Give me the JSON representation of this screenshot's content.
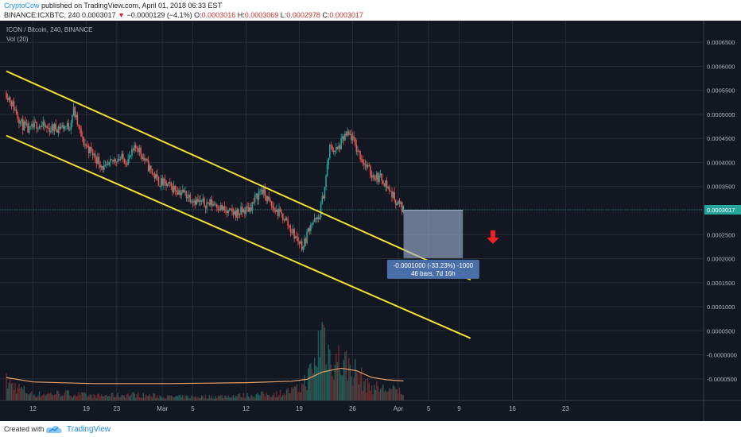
{
  "header": {
    "author": "CryptoCow",
    "published": "published on TradingView.com, April 01, 2018 06:33 EST",
    "symbol_line": "BINANCE:ICXBTC, 240",
    "last_value": "0.0003017",
    "change_arrow": "▼",
    "change_text": "−0.0000129 (−4.1%)",
    "ohlc": [
      {
        "key": "O:",
        "value": "0.0003016"
      },
      {
        "key": "H:",
        "value": "0.0003069"
      },
      {
        "key": "L:",
        "value": "0.0002978"
      },
      {
        "key": "C:",
        "value": "0.0003017"
      }
    ]
  },
  "legend": {
    "title": "ICON / Bitcoin, 240, BINANCE",
    "volume": "Vol (20)"
  },
  "footer": {
    "created_with": "Created with",
    "brand": "TradingView"
  },
  "chart_data": {
    "type": "candlestick",
    "ylim": [
      -9.5e-05,
      0.000695
    ],
    "y_ticks": [
      "0.0006500",
      "0.0006000",
      "0.0005500",
      "0.0005000",
      "0.0004500",
      "0.0004000",
      "0.0003500",
      "0.0003017",
      "0.0002500",
      "0.0002000",
      "0.0001500",
      "0.0001000",
      "0.0000500",
      "-0.0000000",
      "-0.0000500"
    ],
    "y_tick_values": [
      0.00065,
      0.0006,
      0.00055,
      0.0005,
      0.00045,
      0.0004,
      0.00035,
      0.0003017,
      0.00025,
      0.0002,
      0.00015,
      0.0001,
      5e-05,
      0.0,
      -5e-05
    ],
    "x_ticks": [
      {
        "label": "12",
        "day": 12
      },
      {
        "label": "19",
        "day": 19
      },
      {
        "label": "23",
        "day": 23
      },
      {
        "label": "Mar",
        "day": 29
      },
      {
        "label": "5",
        "day": 33
      },
      {
        "label": "12",
        "day": 40
      },
      {
        "label": "19",
        "day": 47
      },
      {
        "label": "26",
        "day": 54
      },
      {
        "label": "Apr",
        "day": 60
      },
      {
        "label": "5",
        "day": 64
      },
      {
        "label": "9",
        "day": 68
      },
      {
        "label": "16",
        "day": 75
      },
      {
        "label": "23",
        "day": 82
      }
    ],
    "price_anchors": [
      [
        8.5,
        0.000545
      ],
      [
        9.5,
        0.000515
      ],
      [
        10.5,
        0.00048
      ],
      [
        11.5,
        0.000465
      ],
      [
        12.5,
        0.00048
      ],
      [
        14,
        0.00047
      ],
      [
        16,
        0.000475
      ],
      [
        16.8,
        0.000475
      ],
      [
        17.3,
        0.00051
      ],
      [
        18.5,
        0.000445
      ],
      [
        20,
        0.000415
      ],
      [
        21.5,
        0.000385
      ],
      [
        23,
        0.00041
      ],
      [
        24.5,
        0.000405
      ],
      [
        25.7,
        0.000435
      ],
      [
        27,
        0.000395
      ],
      [
        28.5,
        0.00036
      ],
      [
        30,
        0.00035
      ],
      [
        32,
        0.000335
      ],
      [
        34,
        0.000315
      ],
      [
        36,
        0.000315
      ],
      [
        37.5,
        0.000295
      ],
      [
        39,
        0.000295
      ],
      [
        40.5,
        0.000305
      ],
      [
        42,
        0.000345
      ],
      [
        43.5,
        0.000305
      ],
      [
        45,
        0.000285
      ],
      [
        46.5,
        0.000245
      ],
      [
        47.5,
        0.000225
      ],
      [
        48.5,
        0.000275
      ],
      [
        49.5,
        0.00028
      ],
      [
        50.3,
        0.000345
      ],
      [
        51,
        0.00043
      ],
      [
        52,
        0.000425
      ],
      [
        53,
        0.000455
      ],
      [
        53.8,
        0.000455
      ],
      [
        54.5,
        0.00043
      ],
      [
        55.5,
        0.0004
      ],
      [
        56.5,
        0.000375
      ],
      [
        58,
        0.000365
      ],
      [
        59.5,
        0.000325
      ],
      [
        60.7,
        0.0003017
      ]
    ],
    "volume_profile": [
      [
        8.5,
        0.25
      ],
      [
        12,
        0.08
      ],
      [
        16,
        0.1
      ],
      [
        20,
        0.06
      ],
      [
        25,
        0.08
      ],
      [
        30,
        0.05
      ],
      [
        35,
        0.05
      ],
      [
        40,
        0.07
      ],
      [
        44,
        0.09
      ],
      [
        47,
        0.15
      ],
      [
        49,
        0.45
      ],
      [
        50,
        1.0
      ],
      [
        51,
        0.6
      ],
      [
        53,
        0.5
      ],
      [
        54.5,
        0.38
      ],
      [
        56,
        0.2
      ],
      [
        58,
        0.16
      ],
      [
        60.7,
        0.12
      ]
    ],
    "volume_ma_line": [
      [
        8.5,
        -4.75e-05
      ],
      [
        12,
        -5.65e-05
      ],
      [
        20,
        -6e-05
      ],
      [
        30,
        -6e-05
      ],
      [
        40,
        -5.8e-05
      ],
      [
        46,
        -5.5e-05
      ],
      [
        48,
        -5.1e-05
      ],
      [
        50,
        -3.6e-05
      ],
      [
        52.5,
        -2.8e-05
      ],
      [
        54.5,
        -3.3e-05
      ],
      [
        56.5,
        -4.7e-05
      ],
      [
        58.5,
        -5.2e-05
      ],
      [
        60.7,
        -5.45e-05
      ]
    ],
    "trend_lines": [
      {
        "name": "channel-upper",
        "from": [
          8.5,
          0.00059
        ],
        "to": [
          69.5,
          0.000156
        ]
      },
      {
        "name": "channel-lower",
        "from": [
          8.5,
          0.000456
        ],
        "to": [
          69.5,
          3.44e-05
        ]
      }
    ],
    "current_price": 0.0003017,
    "projection": {
      "box_from": [
        60.7,
        0.000301
      ],
      "box_to": [
        68.5,
        0.000201
      ],
      "label_line1": "-0.0001000 (-33.23%) -1000",
      "label_line2": "46 bars, 7d 16h"
    },
    "colors": {
      "background": "#131722",
      "grid": "#272b35",
      "up": "#26a69a",
      "down": "#ef5350",
      "trend": "#f0e231",
      "price_line": "#26a69a",
      "price_label": "#26a69a",
      "arrow": "#f22020",
      "projection_box": "#9eb3d4",
      "projection_label": "#4a6fa8",
      "volume_ma": "#e6a06a"
    }
  }
}
